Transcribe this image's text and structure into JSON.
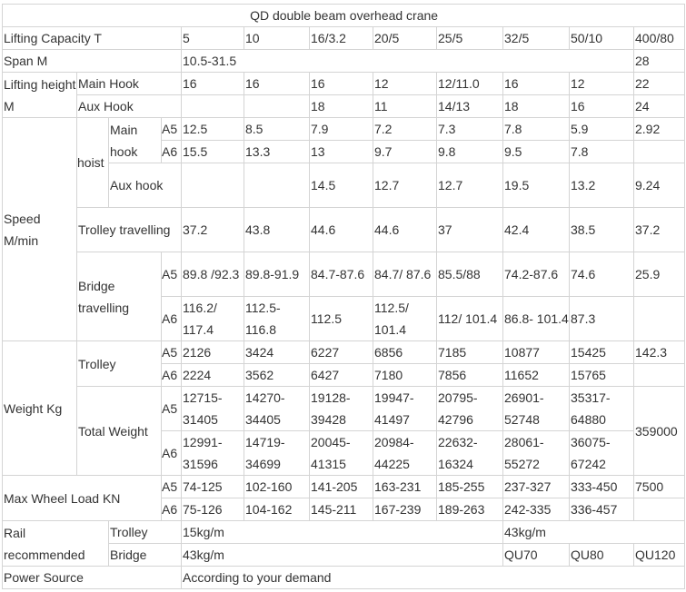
{
  "title": "QD double beam overhead crane",
  "grades": {
    "A5": "A5",
    "A6": "A6"
  },
  "capacity": {
    "label": "Lifting Capacity   T",
    "values": [
      "5",
      "10",
      "16/3.2",
      "20/5",
      "25/5",
      "32/5",
      "50/10",
      "400/80"
    ]
  },
  "span": {
    "label": "Span  M",
    "value_range": "10.5-31.5",
    "value_last": "28"
  },
  "lifting_height": {
    "label": "Lifting height M",
    "main_hook": {
      "label": "Main Hook",
      "values": [
        "16",
        "16",
        "16",
        "12",
        "12/11.0",
        "16",
        "12",
        "22"
      ]
    },
    "aux_hook": {
      "label": "Aux Hook",
      "values": [
        "",
        "",
        "18",
        "11",
        "14/13",
        "18",
        "16",
        "24"
      ]
    }
  },
  "speed": {
    "label": "Speed M/min",
    "hoist_label": "hoist",
    "main_hook_label": "Main hook",
    "main_hook": {
      "A5": [
        "12.5",
        "8.5",
        "7.9",
        "7.2",
        "7.3",
        "7.8",
        "5.9",
        "2.92"
      ],
      "A6": [
        "15.5",
        "13.3",
        "13",
        "9.7",
        "9.8",
        "9.5",
        "7.8",
        ""
      ]
    },
    "aux_hook_label": "Aux hook",
    "aux_hook": [
      "",
      "",
      "14.5",
      "12.7",
      "12.7",
      "19.5",
      "13.2",
      "9.24"
    ],
    "trolley_label": "Trolley travelling",
    "trolley": [
      "37.2",
      "43.8",
      "44.6",
      "44.6",
      "37",
      "42.4",
      "38.5",
      "37.2"
    ],
    "bridge_label": "Bridge travelling",
    "bridge": {
      "A5": [
        "89.8 /92.3",
        "89.8-91.9",
        "84.7-87.6",
        "84.7/ 87.6",
        "85.5/88",
        "74.2-87.6",
        "74.6",
        "25.9"
      ],
      "A6": [
        "116.2/ 117.4",
        "112.5- 116.8",
        "112.5",
        "112.5/ 101.4",
        "112/ 101.4",
        "86.8- 101.4",
        "87.3",
        ""
      ]
    }
  },
  "weight": {
    "label": "Weight  Kg",
    "trolley_label": "Trolley",
    "trolley": {
      "A5": [
        "2126",
        "3424",
        "6227",
        "6856",
        "7185",
        "10877",
        "15425",
        "142.3"
      ],
      "A6": [
        "2224",
        "3562",
        "6427",
        "7180",
        "7856",
        "11652",
        "15765",
        ""
      ]
    },
    "total_label": "Total Weight",
    "total": {
      "A5": [
        "12715-31405",
        "14270-34405",
        "19128-39428",
        "19947-41497",
        "20795-42796",
        "26901-52748",
        "35317-64880",
        "359000"
      ],
      "A6": [
        "12991-31596",
        "14719-34699",
        "20045-41315",
        "20984-44225",
        "22632-16324",
        "28061-55272",
        "36075-67242"
      ]
    }
  },
  "wheel_load": {
    "label": "Max Wheel Load KN",
    "A5": [
      "74-125",
      "102-160",
      "141-205",
      "163-231",
      "185-255",
      "237-327",
      "333-450",
      "7500"
    ],
    "A6": [
      "75-126",
      "104-162",
      "145-211",
      "167-239",
      "189-263",
      "242-335",
      "336-457",
      ""
    ]
  },
  "rail": {
    "label": "Rail recommended",
    "trolley_label": "Trolley",
    "trolley_values": [
      "15kg/m",
      "43kg/m"
    ],
    "bridge_label": "Bridge",
    "bridge_values": [
      "43kg/m",
      "QU70",
      "QU80",
      "QU120"
    ]
  },
  "power": {
    "label": "Power Source",
    "value": "According to your demand"
  }
}
